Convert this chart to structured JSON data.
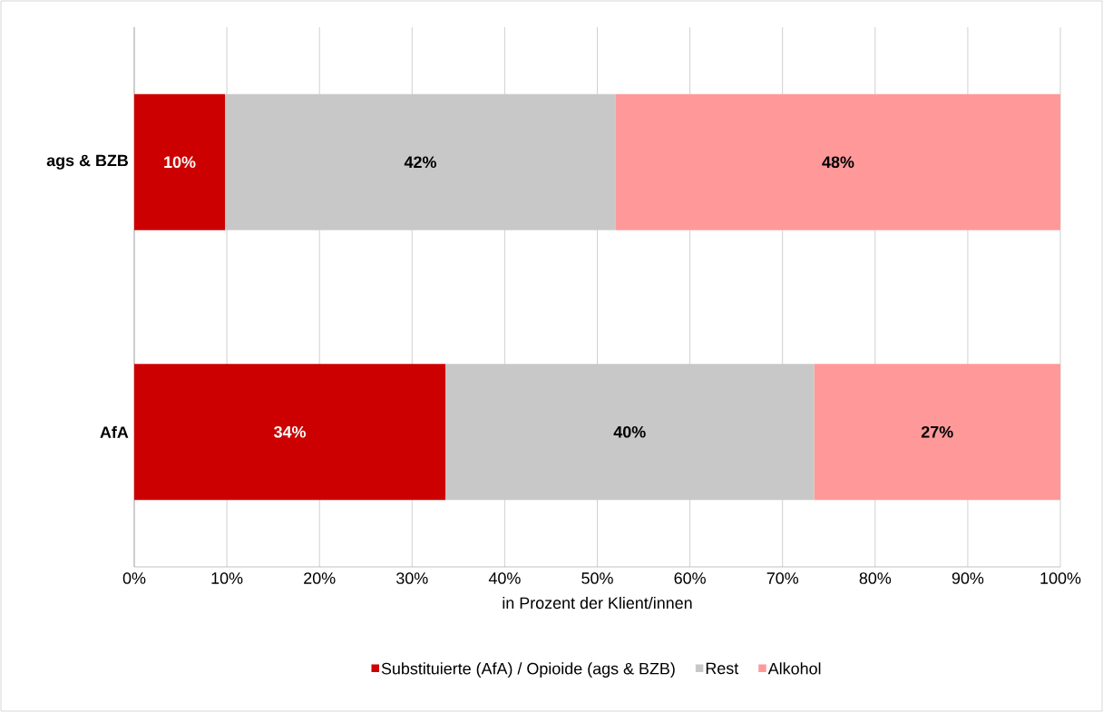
{
  "chart_data": {
    "type": "bar",
    "orientation": "horizontal",
    "stacked": true,
    "categories": [
      "ags & BZB",
      "AfA"
    ],
    "xlabel": "in Prozent der Klient/innen",
    "xlim": [
      0,
      100
    ],
    "xticks": [
      {
        "value": 0,
        "label": "0%"
      },
      {
        "value": 10,
        "label": "10%"
      },
      {
        "value": 20,
        "label": "20%"
      },
      {
        "value": 30,
        "label": "30%"
      },
      {
        "value": 40,
        "label": "40%"
      },
      {
        "value": 50,
        "label": "50%"
      },
      {
        "value": 60,
        "label": "60%"
      },
      {
        "value": 70,
        "label": "70%"
      },
      {
        "value": 80,
        "label": "80%"
      },
      {
        "value": 90,
        "label": "90%"
      },
      {
        "value": 100,
        "label": "100%"
      }
    ],
    "grid": "x",
    "legend": "bottom",
    "series": [
      {
        "name": "Substituierte (AfA) / Opioide (ags & BZB)",
        "color": "#cc0000",
        "values": [
          9.8,
          33.6
        ],
        "value_labels": [
          "10%",
          "34%"
        ]
      },
      {
        "name": "Rest",
        "color": "#c8c8c8",
        "values": [
          42.2,
          39.8
        ],
        "value_labels": [
          "42%",
          "40%"
        ]
      },
      {
        "name": "Alkohol",
        "color": "#ff9999",
        "values": [
          48.0,
          26.6
        ],
        "value_labels": [
          "48%",
          "27%"
        ]
      }
    ]
  }
}
